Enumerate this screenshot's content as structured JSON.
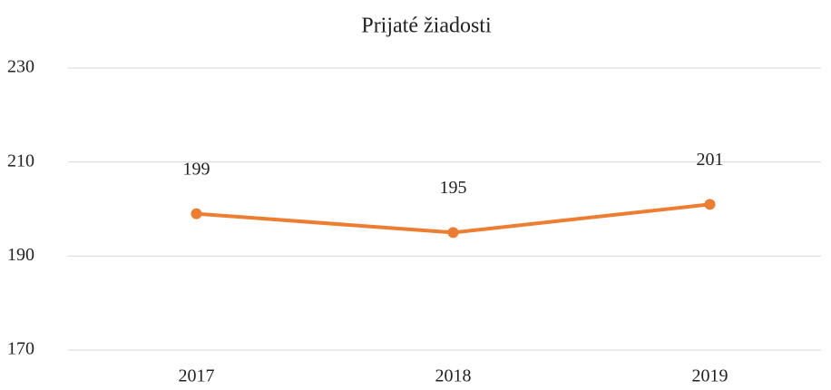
{
  "chart_data": {
    "type": "line",
    "title": "Prijaté žiadosti",
    "categories": [
      "2017",
      "2018",
      "2019"
    ],
    "values": [
      199,
      195,
      201
    ],
    "color": "#ed7d31",
    "ylim": [
      170,
      230
    ],
    "yticks": [
      170,
      190,
      210,
      230
    ],
    "grid": true,
    "data_labels": true
  }
}
